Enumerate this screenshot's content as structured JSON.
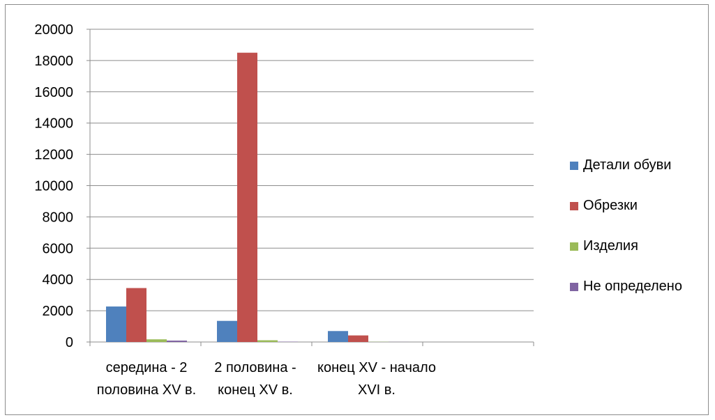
{
  "chart_data": {
    "type": "bar",
    "title": "",
    "xlabel": "",
    "ylabel": "",
    "ylim": [
      0,
      20000
    ],
    "yticks": [
      0,
      2000,
      4000,
      6000,
      8000,
      10000,
      12000,
      14000,
      16000,
      18000,
      20000
    ],
    "grid": true,
    "legend_position": "right",
    "categories": [
      [
        "середина - 2",
        "половина XV в."
      ],
      [
        "2 половина -",
        "конец XV в."
      ],
      [
        "конец  XV - начало",
        "XVI в."
      ],
      [
        "",
        ""
      ]
    ],
    "series": [
      {
        "name": "Детали обуви",
        "color": "#4f81bd",
        "values": [
          2270,
          1350,
          700,
          0
        ]
      },
      {
        "name": "Обрезки",
        "color": "#c0504d",
        "values": [
          3450,
          18500,
          420,
          0
        ]
      },
      {
        "name": "Изделия",
        "color": "#9bbb59",
        "values": [
          170,
          110,
          10,
          0
        ]
      },
      {
        "name": "Не определено",
        "color": "#8064a2",
        "values": [
          90,
          20,
          5,
          0
        ]
      }
    ]
  }
}
